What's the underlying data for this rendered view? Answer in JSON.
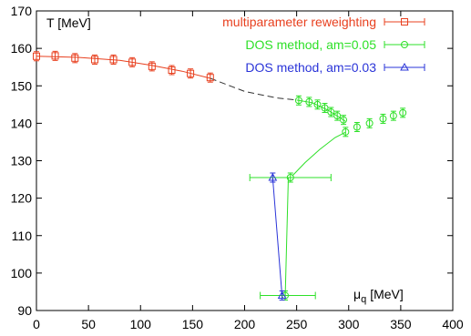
{
  "chart_data": {
    "type": "scatter",
    "xlabel_main": "μ",
    "xlabel_sub": "q",
    "xlabel_unit": "[MeV]",
    "ylabel": "T [MeV]",
    "xlim": [
      0,
      400
    ],
    "ylim": [
      90,
      170
    ],
    "xticks": [
      0,
      50,
      100,
      150,
      200,
      250,
      300,
      350,
      400
    ],
    "yticks": [
      90,
      100,
      110,
      120,
      130,
      140,
      150,
      160,
      170
    ],
    "grid": false,
    "legend_position": "top-right",
    "series": [
      {
        "name": "multiparameter reweighting",
        "color": "#e8401f",
        "marker": "square",
        "points": [
          [
            0,
            157.9
          ],
          [
            18,
            158.0
          ],
          [
            37,
            157.4
          ],
          [
            56,
            157.0
          ],
          [
            74,
            157.0
          ],
          [
            92,
            156.3
          ],
          [
            111,
            155.2
          ],
          [
            130,
            154.2
          ],
          [
            148,
            153.3
          ],
          [
            167,
            152.2
          ]
        ],
        "curve": [
          [
            0,
            157.9
          ],
          [
            40,
            157.6
          ],
          [
            80,
            156.8
          ],
          [
            110,
            155.5
          ],
          [
            140,
            153.9
          ],
          [
            167,
            152.0
          ]
        ]
      },
      {
        "name": "DOS method, am=0.05",
        "color": "#2ee028",
        "marker": "circle",
        "points": [
          [
            252,
            146.1
          ],
          [
            262,
            145.7
          ],
          [
            270,
            145.0
          ],
          [
            277,
            144.1
          ],
          [
            283,
            143.0
          ],
          [
            289,
            142.0
          ],
          [
            295,
            140.9
          ],
          [
            297,
            137.7
          ],
          [
            308,
            139.0
          ],
          [
            320,
            140.0
          ],
          [
            333,
            141.2
          ],
          [
            343,
            142.0
          ],
          [
            352,
            142.8
          ],
          [
            244,
            125.5
          ],
          [
            239,
            94.0
          ]
        ],
        "xerr": [
          [
            247,
            253,
            125.5,
            205,
            283
          ],
          [
            239,
            240,
            94.0,
            215,
            268
          ]
        ],
        "curve_upper": [
          [
            250,
            146.2
          ],
          [
            265,
            145.5
          ],
          [
            280,
            143.5
          ],
          [
            290,
            141.8
          ],
          [
            297,
            140.5
          ]
        ],
        "curve_lower": [
          [
            246,
            126.0
          ],
          [
            258,
            129.5
          ],
          [
            272,
            133.0
          ],
          [
            287,
            136.2
          ],
          [
            297,
            137.6
          ]
        ],
        "drop": [
          [
            242,
            125.5
          ],
          [
            239,
            94.0
          ]
        ]
      },
      {
        "name": "DOS method, am=0.03",
        "color": "#2a34d8",
        "marker": "triangle",
        "points": [
          [
            227,
            125.5
          ],
          [
            236,
            94.0
          ]
        ],
        "xerr": [
          [
            227,
            195,
            260
          ],
          [
            236,
            212,
            254
          ]
        ],
        "drop": [
          [
            227,
            125.5
          ],
          [
            236,
            94.0
          ]
        ]
      }
    ],
    "dashed_link": [
      [
        167,
        152.0
      ],
      [
        200,
        148.5
      ],
      [
        230,
        146.8
      ],
      [
        250,
        146.2
      ]
    ],
    "dashed_color": "#333333"
  }
}
